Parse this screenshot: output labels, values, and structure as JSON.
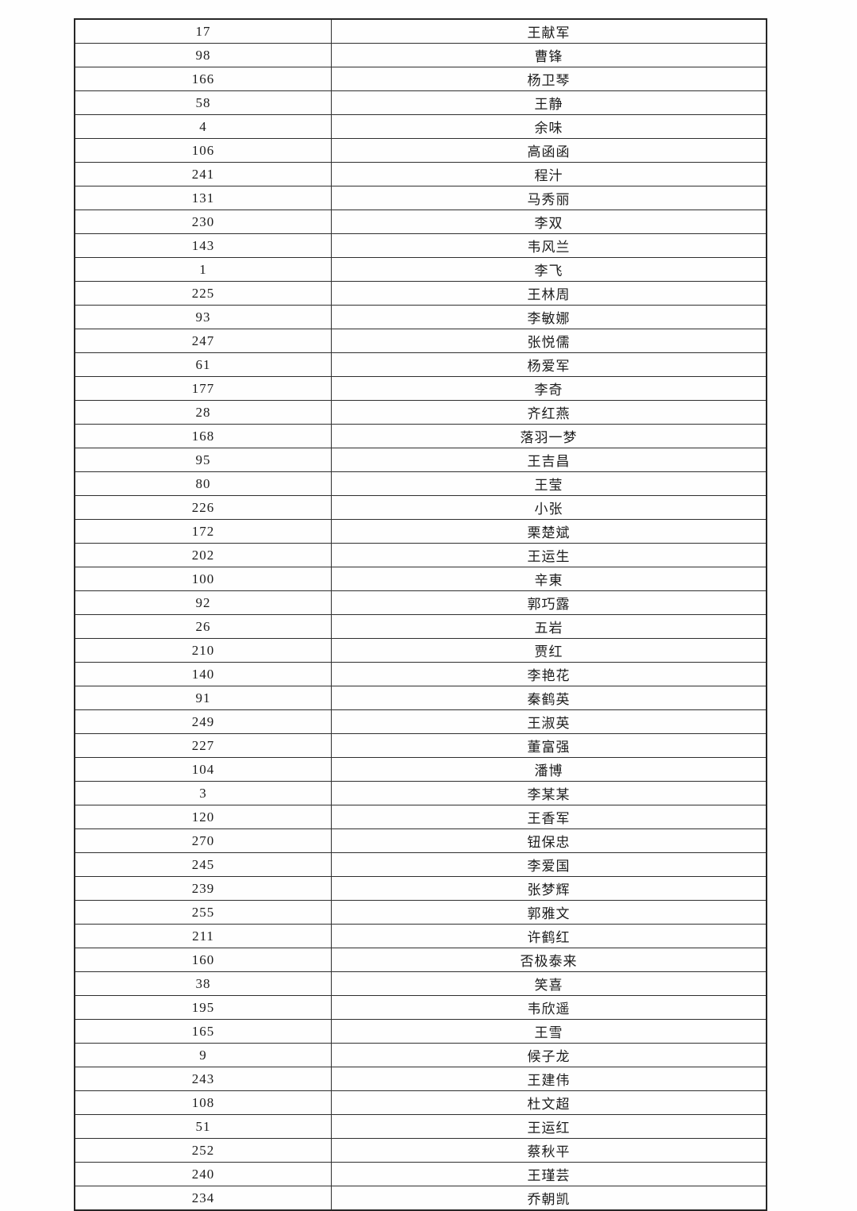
{
  "page": {
    "background_color": "#fefefe"
  },
  "table": {
    "border_color": "#2e2e2e",
    "text_color": "#1c1c1c",
    "columns": [
      "number",
      "name"
    ],
    "rows": [
      {
        "number": "17",
        "name": "王献军"
      },
      {
        "number": "98",
        "name": "曹锋"
      },
      {
        "number": "166",
        "name": "杨卫琴"
      },
      {
        "number": "58",
        "name": "王静"
      },
      {
        "number": "4",
        "name": "余味"
      },
      {
        "number": "106",
        "name": "高函函"
      },
      {
        "number": "241",
        "name": "程汁"
      },
      {
        "number": "131",
        "name": "马秀丽"
      },
      {
        "number": "230",
        "name": "李双"
      },
      {
        "number": "143",
        "name": "韦风兰"
      },
      {
        "number": "1",
        "name": "李飞"
      },
      {
        "number": "225",
        "name": "王林周"
      },
      {
        "number": "93",
        "name": "李敏娜"
      },
      {
        "number": "247",
        "name": "张悦儒"
      },
      {
        "number": "61",
        "name": "杨爱军"
      },
      {
        "number": "177",
        "name": "李奇"
      },
      {
        "number": "28",
        "name": "齐红燕"
      },
      {
        "number": "168",
        "name": "落羽一梦"
      },
      {
        "number": "95",
        "name": "王吉昌"
      },
      {
        "number": "80",
        "name": "王莹"
      },
      {
        "number": "226",
        "name": "小张"
      },
      {
        "number": "172",
        "name": "栗楚斌"
      },
      {
        "number": "202",
        "name": "王运生"
      },
      {
        "number": "100",
        "name": "辛東"
      },
      {
        "number": "92",
        "name": "郭巧露"
      },
      {
        "number": "26",
        "name": "五岩"
      },
      {
        "number": "210",
        "name": "贾红"
      },
      {
        "number": "140",
        "name": "李艳花"
      },
      {
        "number": "91",
        "name": "秦鹤英"
      },
      {
        "number": "249",
        "name": "王淑英"
      },
      {
        "number": "227",
        "name": "董富强"
      },
      {
        "number": "104",
        "name": "潘博"
      },
      {
        "number": "3",
        "name": "李某某"
      },
      {
        "number": "120",
        "name": "王香军"
      },
      {
        "number": "270",
        "name": "钮保忠"
      },
      {
        "number": "245",
        "name": "李爱国"
      },
      {
        "number": "239",
        "name": "张梦辉"
      },
      {
        "number": "255",
        "name": "郭雅文"
      },
      {
        "number": "211",
        "name": "许鹤红"
      },
      {
        "number": "160",
        "name": "否极泰来"
      },
      {
        "number": "38",
        "name": "笑喜"
      },
      {
        "number": "195",
        "name": "韦欣遥"
      },
      {
        "number": "165",
        "name": "王雪"
      },
      {
        "number": "9",
        "name": "候子龙"
      },
      {
        "number": "243",
        "name": "王建伟"
      },
      {
        "number": "108",
        "name": "杜文超"
      },
      {
        "number": "51",
        "name": "王运红"
      },
      {
        "number": "252",
        "name": "蔡秋平"
      },
      {
        "number": "240",
        "name": "王瑾芸"
      },
      {
        "number": "234",
        "name": "乔朝凯"
      }
    ]
  }
}
